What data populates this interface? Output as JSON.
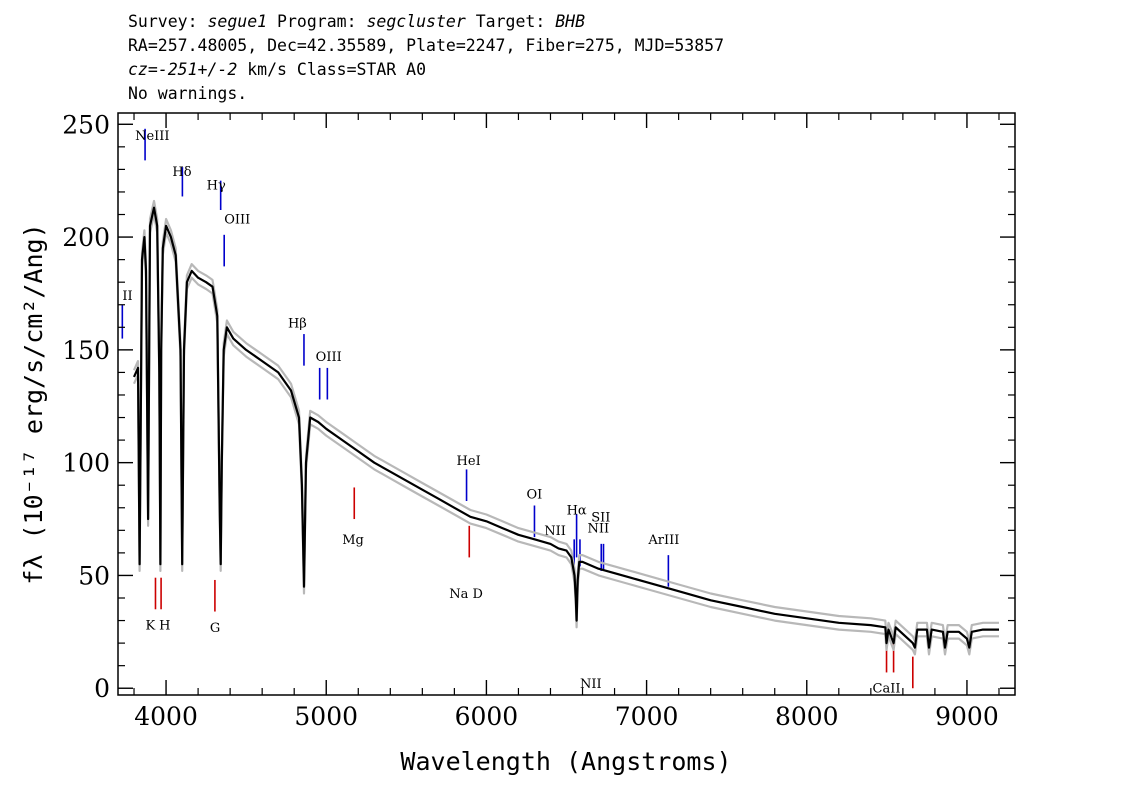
{
  "header": {
    "survey_label": "Survey:",
    "survey": "segue1",
    "program_label": "Program:",
    "program": "segcluster",
    "target_label": "Target:",
    "target": "BHB",
    "line2": "RA=257.48005, Dec=42.35589, Plate=2247, Fiber=275, MJD=53857",
    "cz_label": "cz=",
    "cz_value": "-251+/-2",
    "cz_rest": " km/s Class=STAR A0",
    "line4": "No warnings."
  },
  "chart_data": {
    "type": "line",
    "xlabel": "Wavelength (Angstroms)",
    "ylabel": "fλ (10⁻¹⁷ erg/s/cm²/Ang)",
    "xlim": [
      3700,
      9300
    ],
    "ylim": [
      -3,
      255
    ],
    "x_ticks": [
      4000,
      5000,
      6000,
      7000,
      8000,
      9000
    ],
    "x_tick_labels": [
      "4000",
      "5000",
      "6000",
      "7000",
      "8000",
      "9000"
    ],
    "y_ticks": [
      0,
      50,
      100,
      150,
      200,
      250
    ],
    "y_tick_labels": [
      "0",
      "50",
      "100",
      "150",
      "200",
      "250"
    ],
    "grid": false,
    "series": [
      {
        "color": "#000000",
        "x": [
          3800,
          3825,
          3835,
          3850,
          3865,
          3875,
          3888,
          3900,
          3925,
          3945,
          3958,
          3965,
          3970,
          3980,
          4000,
          4030,
          4060,
          4090,
          4101,
          4112,
          4130,
          4160,
          4200,
          4250,
          4290,
          4320,
          4335,
          4341,
          4348,
          4360,
          4380,
          4420,
          4500,
          4600,
          4700,
          4780,
          4830,
          4848,
          4861,
          4874,
          4900,
          4950,
          5000,
          5100,
          5200,
          5300,
          5400,
          5500,
          5600,
          5700,
          5800,
          5900,
          6000,
          6100,
          6200,
          6300,
          6400,
          6450,
          6500,
          6530,
          6550,
          6558,
          6563,
          6570,
          6580,
          6600,
          6700,
          6800,
          6900,
          7000,
          7200,
          7400,
          7600,
          7800,
          8000,
          8200,
          8400,
          8490,
          8498,
          8510,
          8542,
          8555,
          8570,
          8662,
          8675,
          8690,
          8750,
          8763,
          8780,
          8850,
          8863,
          8880,
          8950,
          9000,
          9015,
          9030,
          9100,
          9200
        ],
        "y": [
          138,
          142,
          55,
          190,
          200,
          185,
          75,
          205,
          213,
          205,
          140,
          55,
          150,
          195,
          205,
          200,
          192,
          150,
          55,
          150,
          180,
          185,
          182,
          180,
          178,
          165,
          80,
          55,
          100,
          150,
          160,
          155,
          150,
          145,
          140,
          132,
          120,
          90,
          45,
          100,
          120,
          118,
          115,
          110,
          105,
          100,
          96,
          92,
          88,
          84,
          80,
          76,
          74,
          71,
          68,
          66,
          64,
          62,
          61,
          58,
          50,
          40,
          30,
          48,
          56,
          56,
          53,
          51,
          49,
          47,
          43,
          39,
          36,
          33,
          31,
          29,
          28,
          27,
          20,
          26,
          20,
          27,
          26,
          20,
          18,
          26,
          26,
          18,
          26,
          25,
          18,
          25,
          25,
          22,
          18,
          25,
          26,
          26
        ]
      }
    ],
    "line_markers": [
      {
        "label": "NeIII",
        "wave": 3869,
        "color": "#0000cc",
        "y": 234,
        "h": 14,
        "label_y": 243,
        "label_dx": -10
      },
      {
        "label": "Hδ",
        "wave": 4102,
        "color": "#0000cc",
        "y": 218,
        "h": 13,
        "label_y": 227,
        "label_dx": -10
      },
      {
        "label": "Hγ",
        "wave": 4341,
        "color": "#0000cc",
        "y": 212,
        "h": 13,
        "label_y": 221,
        "label_dx": -14
      },
      {
        "label": "OIII",
        "wave": 4363,
        "color": "#0000cc",
        "y": 187,
        "h": 14,
        "label_y": 206,
        "label_dx": 0
      },
      {
        "label": "II",
        "wave": 3727,
        "color": "#0000cc",
        "y": 155,
        "h": 15,
        "label_y": 172,
        "label_dx": 0
      },
      {
        "label": "Hβ",
        "wave": 4861,
        "color": "#0000cc",
        "y": 143,
        "h": 14,
        "label_y": 160,
        "label_dx": -16
      },
      {
        "label": "OIII",
        "wave": 4959,
        "color": "#0000cc",
        "y": 128,
        "h": 14,
        "label_y": 145,
        "label_dx": -4
      },
      {
        "label": "",
        "wave": 5007,
        "color": "#0000cc",
        "y": 128,
        "h": 14,
        "label_y": 0,
        "label_dx": 0
      },
      {
        "label": "HeI",
        "wave": 5876,
        "color": "#0000cc",
        "y": 83,
        "h": 14,
        "label_y": 99,
        "label_dx": -10
      },
      {
        "label": "OI",
        "wave": 6300,
        "color": "#0000cc",
        "y": 67,
        "h": 14,
        "label_y": 84,
        "label_dx": -8
      },
      {
        "label": "NII",
        "wave": 6548,
        "color": "#0000cc",
        "y": 54,
        "h": 12,
        "label_y": 68,
        "label_dx": -30
      },
      {
        "label": "Hα",
        "wave": 6563,
        "color": "#0000cc",
        "y": 58,
        "h": 19,
        "label_y": 77,
        "label_dx": -10
      },
      {
        "label": "NII",
        "wave": 6584,
        "color": "#0000cc",
        "y": 54,
        "h": 12,
        "label_y": 0,
        "label_dx": 0
      },
      {
        "label": "SII",
        "wave": 6717,
        "color": "#0000cc",
        "y": 52,
        "h": 12,
        "label_y": 74,
        "label_dx": -10
      },
      {
        "label": "NII",
        "wave": 6731,
        "color": "#0000cc",
        "y": 52,
        "h": 12,
        "label_y": 69,
        "label_dx": -16
      },
      {
        "label": "ArIII",
        "wave": 7136,
        "color": "#0000cc",
        "y": 45,
        "h": 14,
        "label_y": 64,
        "label_dx": -20
      },
      {
        "label": "Mg",
        "wave": 5175,
        "color": "#cc0000",
        "y": 75,
        "h": 14,
        "label_y": 64,
        "label_dx": -12
      },
      {
        "label": "Na D",
        "wave": 5893,
        "color": "#cc0000",
        "y": 58,
        "h": 14,
        "label_y": 40,
        "label_dx": -20
      },
      {
        "label": "K",
        "wave": 3934,
        "color": "#cc0000",
        "y": 35,
        "h": 14,
        "label_y": 26,
        "label_dx": -10
      },
      {
        "label": "H",
        "wave": 3969,
        "color": "#cc0000",
        "y": 35,
        "h": 14,
        "label_y": 26,
        "label_dx": -2
      },
      {
        "label": "G",
        "wave": 4305,
        "color": "#cc0000",
        "y": 34,
        "h": 14,
        "label_y": 25,
        "label_dx": -5
      },
      {
        "label": "CaII",
        "wave": 8498,
        "color": "#cc0000",
        "y": 7,
        "h": 14,
        "label_y": -2,
        "label_dx": -14
      },
      {
        "label": "",
        "wave": 8542,
        "color": "#cc0000",
        "y": 7,
        "h": 14,
        "label_y": 0,
        "label_dx": 0
      },
      {
        "label": "",
        "wave": 8662,
        "color": "#cc0000",
        "y": 0,
        "h": 14,
        "label_y": 0,
        "label_dx": 0
      }
    ]
  }
}
